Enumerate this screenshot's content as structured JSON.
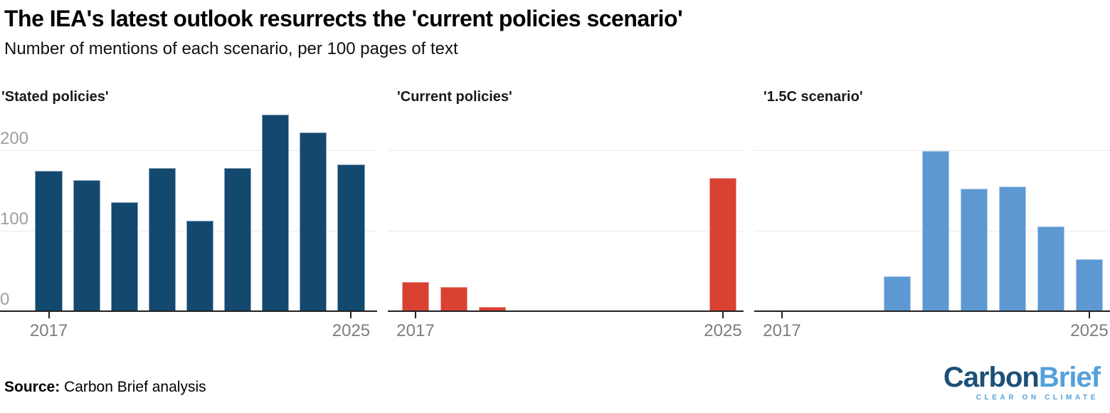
{
  "header": {
    "title": "The IEA's latest outlook resurrects the 'current policies scenario'",
    "subtitle": "Number of mentions of each scenario, per 100 pages of text"
  },
  "axis": {
    "y_ticks": [
      0,
      100,
      200
    ],
    "y_gridlines": [
      100,
      200
    ],
    "x_first": "2017",
    "x_last": "2025"
  },
  "chart_data": [
    {
      "type": "bar",
      "title": "'Stated policies'",
      "categories": [
        2017,
        2018,
        2019,
        2020,
        2021,
        2022,
        2023,
        2024,
        2025
      ],
      "values": [
        175,
        164,
        136,
        179,
        113,
        179,
        245,
        223,
        183
      ],
      "bar_color": "#13486F",
      "xlabel": "",
      "ylabel": "",
      "ylim": [
        0,
        252
      ],
      "grid": "horizontal",
      "legend": "none"
    },
    {
      "type": "bar",
      "title": "'Current policies'",
      "categories": [
        2017,
        2018,
        2019,
        2020,
        2021,
        2022,
        2023,
        2024,
        2025
      ],
      "values": [
        37,
        31,
        6,
        0,
        0,
        0,
        0,
        0,
        166
      ],
      "bar_color": "#D94132",
      "xlabel": "",
      "ylabel": "",
      "ylim": [
        0,
        252
      ],
      "grid": "horizontal",
      "legend": "none"
    },
    {
      "type": "bar",
      "title": "'1.5C scenario'",
      "categories": [
        2017,
        2018,
        2019,
        2020,
        2021,
        2022,
        2023,
        2024,
        2025
      ],
      "values": [
        0,
        0,
        0,
        44,
        200,
        153,
        156,
        106,
        65
      ],
      "bar_color": "#5D98D3",
      "xlabel": "",
      "ylabel": "",
      "ylim": [
        0,
        252
      ],
      "grid": "horizontal",
      "legend": "none"
    }
  ],
  "source": {
    "label": "Source:",
    "text": "Carbon Brief analysis"
  },
  "logo": {
    "part1": "Carbon",
    "part2": "Brief",
    "tagline": "CLEAR ON CLIMATE",
    "color_dark": "#1C5078",
    "color_light": "#54A1DB"
  }
}
